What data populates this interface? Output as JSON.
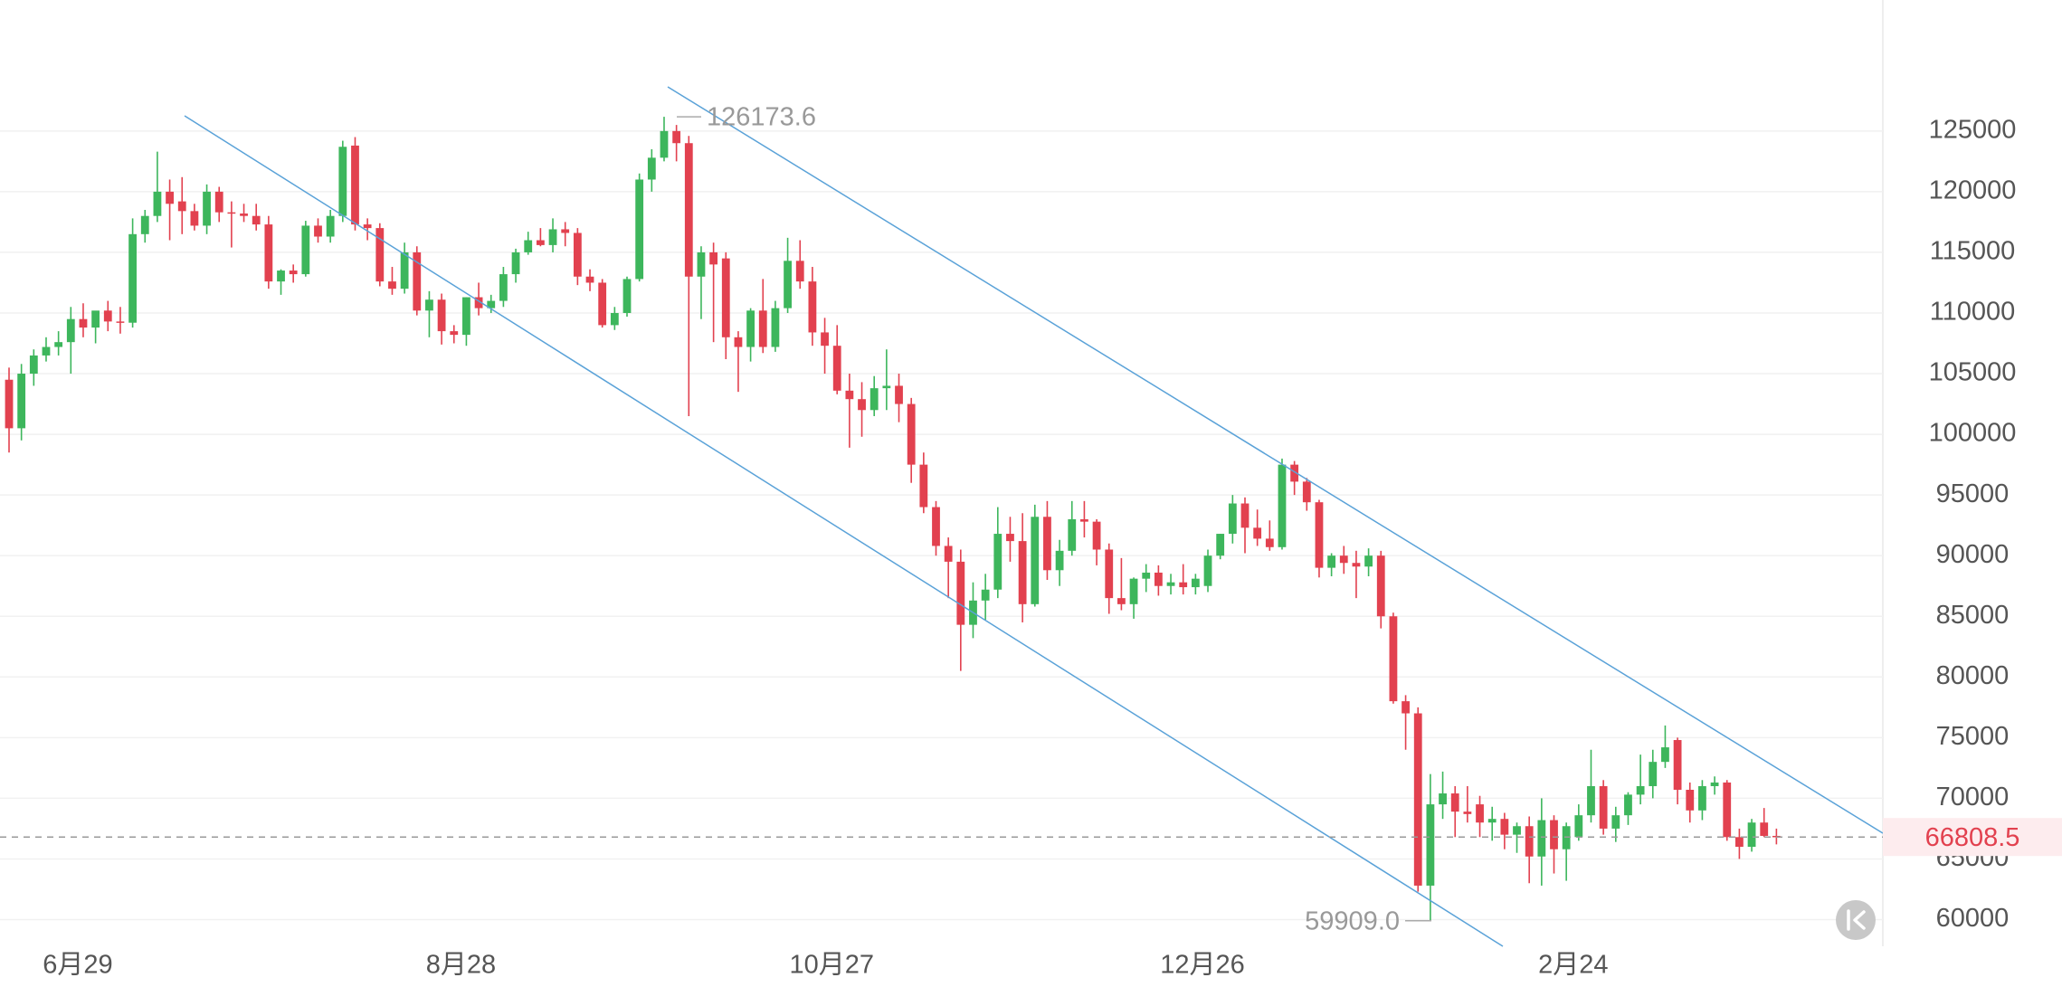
{
  "chart_data": {
    "type": "candlestick",
    "up_color": "#3db65c",
    "down_color": "#e2414f",
    "grid": true,
    "ylim": [
      57800,
      135800
    ],
    "yticks": [
      60000,
      65000,
      70000,
      75000,
      80000,
      85000,
      90000,
      95000,
      100000,
      105000,
      110000,
      115000,
      120000,
      125000
    ],
    "high_label": 126173.6,
    "low_label": {
      "value": 59909,
      "label": "59909.0"
    },
    "last_price": 66808.5,
    "categories": [
      null,
      null,
      null,
      "6月29",
      null,
      null,
      null,
      null,
      null,
      null,
      null,
      null,
      null,
      null,
      null,
      null,
      null,
      null,
      null,
      null,
      null,
      null,
      null,
      null,
      null,
      null,
      null,
      null,
      null,
      null,
      null,
      null,
      null,
      null,
      "8月28",
      null,
      null,
      null,
      null,
      null,
      null,
      null,
      null,
      null,
      null,
      null,
      null,
      null,
      null,
      null,
      null,
      null,
      null,
      null,
      null,
      null,
      null,
      null,
      null,
      null,
      null,
      null,
      null,
      null,
      "10月27",
      null,
      null,
      null,
      null,
      null,
      null,
      null,
      null,
      null,
      null,
      null,
      null,
      null,
      null,
      null,
      null,
      null,
      null,
      null,
      null,
      null,
      null,
      null,
      null,
      null,
      null,
      null,
      null,
      null,
      "12月26",
      null,
      null,
      null,
      null,
      null,
      null,
      null,
      null,
      null,
      null,
      null,
      null,
      null,
      null,
      null,
      null,
      null,
      null,
      null,
      null,
      null,
      null,
      null,
      null,
      null,
      null,
      null,
      null,
      null,
      "2月24",
      null,
      null,
      null,
      null,
      null,
      null,
      null,
      null,
      null,
      null,
      null,
      null,
      null,
      null,
      null,
      null,
      null,
      null,
      null
    ],
    "ohlc": [
      [
        104500,
        105500,
        98500,
        100500
      ],
      [
        100500,
        105800,
        99500,
        105000
      ],
      [
        105000,
        107000,
        104000,
        106500
      ],
      [
        106500,
        108000,
        106000,
        107200
      ],
      [
        107200,
        108500,
        106500,
        107600
      ],
      [
        107600,
        110500,
        105000,
        109500
      ],
      [
        109500,
        110800,
        108000,
        108800
      ],
      [
        108800,
        110000,
        107500,
        110200
      ],
      [
        110200,
        111000,
        108500,
        109300
      ],
      [
        109300,
        110500,
        108300,
        109200
      ],
      [
        109200,
        117800,
        108800,
        116500
      ],
      [
        116500,
        118500,
        115800,
        118000
      ],
      [
        118000,
        123300,
        117500,
        120000
      ],
      [
        120000,
        121000,
        116000,
        119000
      ],
      [
        119200,
        121200,
        116500,
        118400
      ],
      [
        118400,
        119000,
        116800,
        117200
      ],
      [
        117200,
        120600,
        116500,
        120000
      ],
      [
        120000,
        120400,
        117500,
        118300
      ],
      [
        118300,
        119200,
        115400,
        118200
      ],
      [
        118200,
        119000,
        117500,
        118000
      ],
      [
        118000,
        119000,
        116800,
        117300
      ],
      [
        117300,
        118000,
        112000,
        112600
      ],
      [
        112600,
        113600,
        111500,
        113500
      ],
      [
        113500,
        114000,
        112500,
        113200
      ],
      [
        113200,
        117600,
        113000,
        117200
      ],
      [
        117200,
        117800,
        115800,
        116300
      ],
      [
        116300,
        118500,
        115800,
        118000
      ],
      [
        118000,
        124200,
        117500,
        123700
      ],
      [
        123800,
        124500,
        116800,
        117300
      ],
      [
        117300,
        117800,
        116000,
        117000
      ],
      [
        117000,
        117400,
        112200,
        112600
      ],
      [
        112600,
        113800,
        111500,
        112000
      ],
      [
        112000,
        115800,
        111600,
        115000
      ],
      [
        115000,
        115500,
        109800,
        110200
      ],
      [
        110200,
        111800,
        108000,
        111100
      ],
      [
        111100,
        111600,
        107400,
        108500
      ],
      [
        108500,
        109000,
        107500,
        108200
      ],
      [
        108200,
        111300,
        107300,
        111300
      ],
      [
        111300,
        112500,
        109800,
        110400
      ],
      [
        110400,
        111500,
        110000,
        111000
      ],
      [
        111000,
        113800,
        110500,
        113200
      ],
      [
        113200,
        115300,
        112500,
        115000
      ],
      [
        115000,
        116700,
        114800,
        116000
      ],
      [
        116000,
        117000,
        115500,
        115600
      ],
      [
        115600,
        117800,
        115000,
        116900
      ],
      [
        116900,
        117500,
        115500,
        116600
      ],
      [
        116600,
        117000,
        112300,
        113000
      ],
      [
        113000,
        113600,
        111800,
        112500
      ],
      [
        112500,
        112800,
        108800,
        109000
      ],
      [
        109000,
        110500,
        108600,
        110000
      ],
      [
        110000,
        113000,
        109700,
        112800
      ],
      [
        112800,
        121500,
        112600,
        121000
      ],
      [
        121000,
        123500,
        120000,
        122800
      ],
      [
        122800,
        126173.6,
        122500,
        125000
      ],
      [
        125000,
        125500,
        122500,
        124000
      ],
      [
        124000,
        124600,
        101500,
        113000
      ],
      [
        113000,
        115500,
        109500,
        115000
      ],
      [
        115000,
        115800,
        107600,
        114000
      ],
      [
        114500,
        115000,
        106200,
        108000
      ],
      [
        108000,
        108500,
        103500,
        107200
      ],
      [
        107200,
        110400,
        106000,
        110200
      ],
      [
        110200,
        112800,
        106700,
        107200
      ],
      [
        107200,
        111000,
        106800,
        110400
      ],
      [
        110400,
        116200,
        110000,
        114300
      ],
      [
        114300,
        116000,
        112000,
        112600
      ],
      [
        112600,
        113800,
        107300,
        108400
      ],
      [
        108400,
        109600,
        105000,
        107300
      ],
      [
        107300,
        109000,
        103300,
        103600
      ],
      [
        103600,
        105000,
        98900,
        102900
      ],
      [
        102900,
        104300,
        99800,
        102000
      ],
      [
        102000,
        104800,
        101500,
        103800
      ],
      [
        103800,
        107000,
        102000,
        104000
      ],
      [
        104000,
        105000,
        101000,
        102500
      ],
      [
        102500,
        103000,
        96000,
        97500
      ],
      [
        97500,
        98500,
        93500,
        94000
      ],
      [
        94000,
        94500,
        90000,
        90800
      ],
      [
        90800,
        91500,
        86500,
        89500
      ],
      [
        89500,
        90500,
        80500,
        84300
      ],
      [
        84300,
        87800,
        83200,
        86300
      ],
      [
        86300,
        88500,
        84700,
        87200
      ],
      [
        87200,
        94000,
        86500,
        91800
      ],
      [
        91800,
        93200,
        89500,
        91200
      ],
      [
        91200,
        93500,
        84500,
        86000
      ],
      [
        86000,
        94200,
        85800,
        93200
      ],
      [
        93200,
        94500,
        88000,
        88800
      ],
      [
        88800,
        91300,
        87500,
        90400
      ],
      [
        90400,
        94500,
        90000,
        93000
      ],
      [
        93000,
        94500,
        91500,
        92800
      ],
      [
        92800,
        93000,
        89200,
        90500
      ],
      [
        90500,
        91000,
        85200,
        86500
      ],
      [
        86500,
        89800,
        85500,
        86000
      ],
      [
        86000,
        88200,
        84800,
        88100
      ],
      [
        88100,
        89300,
        87000,
        88600
      ],
      [
        88600,
        89200,
        86700,
        87500
      ],
      [
        87500,
        88500,
        86800,
        87800
      ],
      [
        87800,
        89300,
        86800,
        87400
      ],
      [
        87400,
        88500,
        86800,
        88100
      ],
      [
        87500,
        90500,
        87000,
        90000
      ],
      [
        90000,
        91800,
        89700,
        91800
      ],
      [
        91800,
        95000,
        91000,
        94300
      ],
      [
        94300,
        94800,
        90200,
        92300
      ],
      [
        92300,
        93800,
        90800,
        91400
      ],
      [
        91400,
        92900,
        90400,
        90700
      ],
      [
        90700,
        98000,
        90500,
        97500
      ],
      [
        97500,
        97800,
        95000,
        96100
      ],
      [
        96100,
        96400,
        93700,
        94400
      ],
      [
        94400,
        94600,
        88200,
        89000
      ],
      [
        89000,
        90200,
        88300,
        90000
      ],
      [
        90000,
        90800,
        88500,
        89400
      ],
      [
        89400,
        90400,
        86500,
        89100
      ],
      [
        89100,
        90600,
        88300,
        90000
      ],
      [
        90000,
        90400,
        84000,
        85000
      ],
      [
        85000,
        85300,
        77800,
        78000
      ],
      [
        78000,
        78500,
        74000,
        77000
      ],
      [
        77000,
        77500,
        62300,
        62800
      ],
      [
        62800,
        72000,
        59909,
        69500
      ],
      [
        69500,
        72200,
        68300,
        70400
      ],
      [
        70400,
        71000,
        66800,
        68900
      ],
      [
        68900,
        71000,
        68000,
        68700
      ],
      [
        69500,
        70200,
        66800,
        68000
      ],
      [
        68000,
        69300,
        66500,
        68300
      ],
      [
        68300,
        68800,
        65800,
        67000
      ],
      [
        67000,
        68000,
        65500,
        67700
      ],
      [
        67700,
        68500,
        63000,
        65200
      ],
      [
        65200,
        70000,
        62800,
        68200
      ],
      [
        68200,
        68600,
        63800,
        65800
      ],
      [
        65800,
        68000,
        63200,
        67700
      ],
      [
        66800,
        69500,
        66500,
        68600
      ],
      [
        68600,
        74000,
        68000,
        71000
      ],
      [
        71000,
        71500,
        67000,
        67500
      ],
      [
        67500,
        69300,
        66400,
        68600
      ],
      [
        68600,
        70500,
        67800,
        70300
      ],
      [
        70300,
        73600,
        69500,
        71000
      ],
      [
        71000,
        74000,
        70000,
        73000
      ],
      [
        73000,
        76000,
        72500,
        74200
      ],
      [
        74800,
        75000,
        69500,
        70700
      ],
      [
        70700,
        71300,
        68000,
        69000
      ],
      [
        69000,
        71500,
        68200,
        71000
      ],
      [
        71000,
        71800,
        70300,
        71300
      ],
      [
        71300,
        71500,
        66500,
        66800
      ],
      [
        66800,
        67500,
        65000,
        66000
      ],
      [
        66000,
        68300,
        65600,
        68000
      ],
      [
        68000,
        69200,
        66800,
        66900
      ],
      [
        66900,
        67500,
        66200,
        66808.5
      ]
    ]
  }
}
